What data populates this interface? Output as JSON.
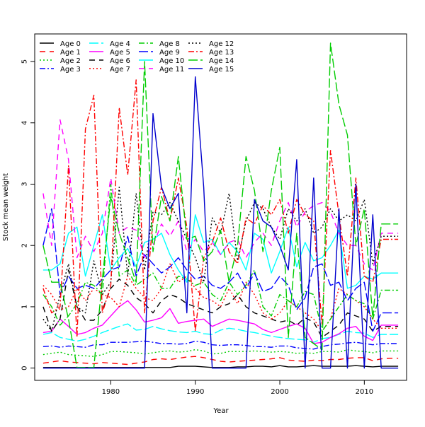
{
  "chart_data": {
    "type": "line",
    "title": "",
    "xlabel": "Year",
    "ylabel": "Stock mean weight",
    "xlim": [
      1971,
      2015
    ],
    "ylim": [
      -0.2,
      5.45
    ],
    "xticks": [
      1980,
      1990,
      2000,
      2010
    ],
    "yticks": [
      0,
      1,
      2,
      3,
      4,
      5
    ],
    "grid": false,
    "legend_position": "top-left",
    "x": [
      1972,
      1973,
      1974,
      1975,
      1976,
      1977,
      1978,
      1979,
      1980,
      1981,
      1982,
      1983,
      1984,
      1985,
      1986,
      1987,
      1988,
      1989,
      1990,
      1991,
      1992,
      1993,
      1994,
      1995,
      1996,
      1997,
      1998,
      1999,
      2000,
      2001,
      2002,
      2003,
      2004,
      2005,
      2006,
      2007,
      2008,
      2009,
      2010,
      2011,
      2012,
      2013,
      2014
    ],
    "series": [
      {
        "name": "Age 0",
        "color": "#000000",
        "dash": "solid",
        "values": [
          0.01,
          0.01,
          0.01,
          0.01,
          0.01,
          0.01,
          0.01,
          0.01,
          0.01,
          0.01,
          0.01,
          0.01,
          0.01,
          0.01,
          0.01,
          0.01,
          0.03,
          0.03,
          0.03,
          0.02,
          0.01,
          0.01,
          0.01,
          0.02,
          0.02,
          0.03,
          0.03,
          0.02,
          0.04,
          0.02,
          0.02,
          0.03,
          0.04,
          0.03,
          0.03,
          0.03,
          0.03,
          0.04,
          0.03,
          0.02,
          0.03,
          0.03,
          0.03
        ]
      },
      {
        "name": "Age 1",
        "color": "#ff0000",
        "dash": "8,6",
        "values": [
          0.08,
          0.1,
          0.12,
          0.1,
          0.09,
          0.08,
          0.07,
          0.09,
          0.08,
          0.07,
          0.06,
          0.08,
          0.1,
          0.14,
          0.15,
          0.14,
          0.16,
          0.18,
          0.19,
          0.17,
          0.14,
          0.11,
          0.1,
          0.11,
          0.12,
          0.13,
          0.14,
          0.15,
          0.17,
          0.13,
          0.12,
          0.11,
          0.13,
          0.12,
          0.14,
          0.14,
          0.16,
          0.17,
          0.17,
          0.12,
          0.15,
          0.16,
          0.16
        ]
      },
      {
        "name": "Age 2",
        "color": "#00cd00",
        "dash": "2,3",
        "values": [
          0.22,
          0.24,
          0.26,
          0.22,
          0.21,
          0.2,
          0.19,
          0.22,
          0.27,
          0.27,
          0.26,
          0.25,
          0.23,
          0.25,
          0.27,
          0.28,
          0.26,
          0.27,
          0.3,
          0.28,
          0.23,
          0.24,
          0.27,
          0.27,
          0.27,
          0.28,
          0.27,
          0.26,
          0.27,
          0.26,
          0.24,
          0.25,
          0.24,
          0.27,
          0.27,
          0.26,
          0.3,
          0.28,
          0.27,
          0.25,
          0.28,
          0.28,
          0.28
        ]
      },
      {
        "name": "Age 3",
        "color": "#0000ff",
        "dash": "8,3,2,3",
        "values": [
          0.35,
          0.36,
          0.34,
          0.36,
          0.35,
          0.34,
          0.38,
          0.38,
          0.42,
          0.42,
          0.42,
          0.43,
          0.44,
          0.42,
          0.4,
          0.4,
          0.39,
          0.4,
          0.44,
          0.42,
          0.38,
          0.37,
          0.38,
          0.38,
          0.37,
          0.35,
          0.35,
          0.34,
          0.36,
          0.36,
          0.33,
          0.32,
          0.31,
          0.35,
          0.38,
          0.39,
          0.41,
          0.42,
          0.4,
          0.38,
          0.4,
          0.4,
          0.4
        ]
      },
      {
        "name": "Age 4",
        "color": "#00ffff",
        "dash": "13,4",
        "values": [
          0.55,
          0.58,
          0.5,
          0.47,
          0.44,
          0.47,
          0.52,
          0.58,
          0.63,
          0.68,
          0.72,
          0.62,
          0.63,
          0.68,
          0.64,
          0.61,
          0.59,
          0.58,
          0.6,
          0.56,
          0.55,
          0.62,
          0.65,
          0.63,
          0.6,
          0.58,
          0.55,
          0.52,
          0.5,
          0.48,
          0.47,
          0.46,
          0.42,
          0.48,
          0.5,
          0.55,
          0.6,
          0.58,
          0.57,
          0.5,
          0.55,
          0.55,
          0.55
        ]
      },
      {
        "name": "Age 5",
        "color": "#ff00ff",
        "dash": "solid",
        "values": [
          0.58,
          0.6,
          0.8,
          0.68,
          0.55,
          0.58,
          0.65,
          0.7,
          0.85,
          1.0,
          1.1,
          0.95,
          0.75,
          0.78,
          0.82,
          0.97,
          0.73,
          0.76,
          0.78,
          0.8,
          0.68,
          0.74,
          0.8,
          0.78,
          0.75,
          0.72,
          0.63,
          0.58,
          0.63,
          0.68,
          0.72,
          0.65,
          0.4,
          0.42,
          0.5,
          0.56,
          0.65,
          0.68,
          0.52,
          0.45,
          0.7,
          0.7,
          0.7
        ]
      },
      {
        "name": "Age 6",
        "color": "#000000",
        "dash": "8,6",
        "values": [
          1.0,
          0.6,
          0.8,
          1.6,
          1.0,
          0.78,
          0.78,
          0.95,
          1.3,
          1.45,
          1.35,
          1.15,
          1.05,
          0.9,
          1.1,
          1.2,
          1.15,
          1.05,
          1.0,
          0.95,
          0.9,
          1.0,
          1.05,
          1.2,
          1.0,
          0.9,
          0.85,
          0.8,
          0.75,
          0.78,
          0.7,
          0.82,
          0.75,
          0.5,
          0.6,
          0.7,
          0.9,
          0.85,
          0.8,
          0.6,
          0.68,
          0.68,
          0.68
        ]
      },
      {
        "name": "Age 7",
        "color": "#ff0000",
        "dash": "2,3",
        "values": [
          1.35,
          1.2,
          0.95,
          1.0,
          1.3,
          1.1,
          1.3,
          1.2,
          1.15,
          1.0,
          1.5,
          1.3,
          1.15,
          1.1,
          1.3,
          1.7,
          1.4,
          1.5,
          1.3,
          1.15,
          1.1,
          1.0,
          1.3,
          1.05,
          1.4,
          1.2,
          0.9,
          0.8,
          0.9,
          1.1,
          1.0,
          0.9,
          0.8,
          0.6,
          0.8,
          1.3,
          1.2,
          1.1,
          1.0,
          0.8,
          0.65,
          0.65,
          0.65
        ]
      },
      {
        "name": "Age 8",
        "color": "#00cd00",
        "dash": "8,3,2,3",
        "values": [
          1.2,
          1.0,
          0.7,
          0.85,
          1.05,
          1.4,
          1.35,
          1.2,
          3.0,
          1.5,
          1.6,
          1.35,
          1.45,
          1.55,
          1.3,
          1.3,
          1.5,
          1.45,
          1.35,
          1.4,
          1.2,
          1.1,
          1.4,
          1.2,
          1.35,
          1.6,
          1.0,
          0.85,
          1.2,
          1.1,
          1.0,
          1.25,
          1.2,
          0.6,
          0.8,
          1.0,
          1.2,
          1.1,
          1.05,
          0.8,
          1.27,
          1.27,
          1.27
        ]
      },
      {
        "name": "Age 9",
        "color": "#0000ff",
        "dash": "13,4",
        "values": [
          2.0,
          2.6,
          1.2,
          1.5,
          1.3,
          1.35,
          1.3,
          1.45,
          1.6,
          1.65,
          2.15,
          1.5,
          1.85,
          1.7,
          1.55,
          1.65,
          1.8,
          1.6,
          1.45,
          1.5,
          1.35,
          1.3,
          1.4,
          1.55,
          1.3,
          1.55,
          1.25,
          1.3,
          1.5,
          1.35,
          0.95,
          1.15,
          1.65,
          1.7,
          1.35,
          1.4,
          1.1,
          1.3,
          1.4,
          0.6,
          0.9,
          0.9,
          0.9
        ]
      },
      {
        "name": "Age 10",
        "color": "#00ffff",
        "dash": "solid",
        "values": [
          1.6,
          1.6,
          1.7,
          2.2,
          2.3,
          1.5,
          2.0,
          2.5,
          1.6,
          1.8,
          1.95,
          1.65,
          2.05,
          2.1,
          2.2,
          1.85,
          1.6,
          1.4,
          2.5,
          2.05,
          2.1,
          1.85,
          2.05,
          1.9,
          1.6,
          2.2,
          2.1,
          1.55,
          1.9,
          2.3,
          1.65,
          2.05,
          1.75,
          1.8,
          2.0,
          2.25,
          1.3,
          1.35,
          1.5,
          1.45,
          1.55,
          1.55,
          1.55
        ]
      },
      {
        "name": "Age 11",
        "color": "#ff00ff",
        "dash": "8,6",
        "values": [
          2.85,
          2.0,
          4.05,
          3.4,
          1.8,
          2.15,
          1.9,
          2.2,
          3.1,
          2.2,
          2.3,
          2.25,
          1.8,
          2.0,
          2.35,
          2.15,
          2.4,
          1.9,
          2.1,
          1.9,
          2.05,
          1.85,
          2.05,
          2.1,
          1.8,
          2.05,
          2.2,
          2.0,
          2.4,
          2.7,
          2.3,
          2.55,
          2.65,
          2.7,
          2.55,
          2.2,
          2.0,
          2.0,
          1.7,
          1.6,
          2.2,
          2.2,
          2.2
        ]
      },
      {
        "name": "Age 12",
        "color": "#000000",
        "dash": "2,3",
        "values": [
          0.8,
          0.6,
          1.2,
          1.7,
          1.0,
          0.9,
          1.75,
          1.2,
          1.4,
          2.95,
          1.5,
          2.85,
          1.6,
          2.55,
          2.5,
          2.7,
          2.4,
          2.1,
          1.8,
          1.4,
          2.45,
          2.2,
          2.85,
          1.75,
          2.4,
          2.7,
          2.6,
          2.3,
          2.1,
          2.6,
          2.4,
          2.6,
          2.2,
          2.3,
          2.6,
          2.4,
          2.5,
          2.4,
          2.75,
          1.7,
          2.15,
          2.15,
          2.15
        ]
      },
      {
        "name": "Age 13",
        "color": "#ff0000",
        "dash": "8,3,2,3",
        "values": [
          1.3,
          0.9,
          1.0,
          3.3,
          0.5,
          3.9,
          4.45,
          0.9,
          1.35,
          4.25,
          3.15,
          4.7,
          0.9,
          2.4,
          2.95,
          2.4,
          3.1,
          2.3,
          0.6,
          1.8,
          2.05,
          2.45,
          1.9,
          1.7,
          2.45,
          2.35,
          2.65,
          2.5,
          2.75,
          2.2,
          2.75,
          2.5,
          2.4,
          0.7,
          3.55,
          2.5,
          1.5,
          3.1,
          1.5,
          1.4,
          2.1,
          2.1,
          2.1
        ]
      },
      {
        "name": "Age 14",
        "color": "#00cd00",
        "dash": "13,4",
        "values": [
          2.0,
          1.4,
          1.4,
          0.8,
          0.01,
          0.01,
          0.01,
          1.45,
          2.8,
          2.2,
          1.8,
          1.4,
          5.0,
          1.9,
          2.8,
          2.4,
          3.45,
          2.1,
          2.15,
          1.75,
          1.9,
          2.25,
          1.4,
          2.0,
          3.45,
          2.9,
          1.9,
          2.9,
          3.6,
          0.5,
          2.2,
          0.5,
          0.4,
          0.3,
          5.3,
          4.3,
          3.8,
          2.0,
          2.6,
          0.8,
          2.35,
          2.35,
          2.35
        ]
      },
      {
        "name": "Age 15",
        "color": "#0000cd",
        "dash": "solid",
        "values": [
          0.0,
          0.0,
          0.0,
          0.0,
          0.0,
          0.0,
          0.0,
          0.0,
          0.0,
          0.0,
          0.0,
          0.0,
          0.0,
          4.15,
          2.95,
          2.6,
          2.85,
          0.9,
          4.75,
          2.95,
          0.0,
          0.0,
          0.0,
          0.0,
          0.0,
          2.75,
          2.4,
          2.3,
          2.0,
          1.6,
          3.4,
          0.0,
          3.1,
          0.0,
          0.0,
          2.6,
          0.0,
          3.0,
          0.0,
          2.5,
          0.0,
          0.0,
          0.0
        ]
      }
    ]
  }
}
